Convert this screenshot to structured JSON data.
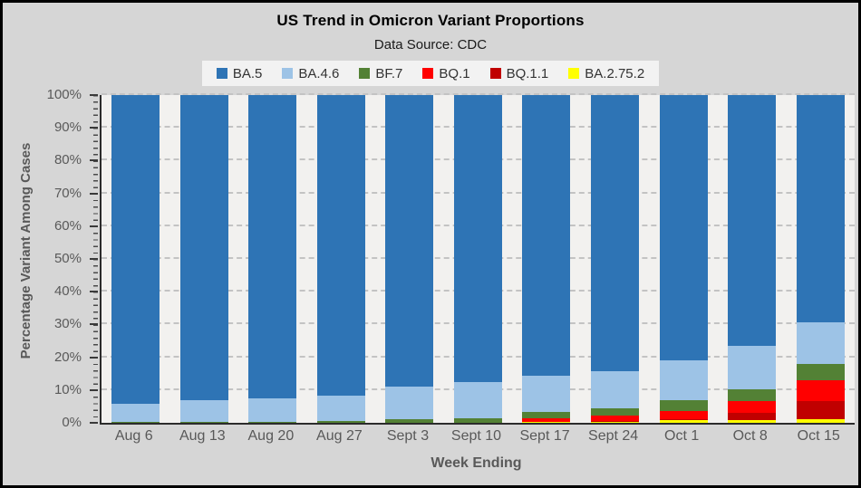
{
  "window": {
    "outer_background": "#d6d6d6",
    "border_color": "#000000"
  },
  "colors": {
    "plot_background": "#f2f1ef",
    "gridline": "#c3c3c3",
    "axis_line": "#2b2b2b",
    "axis_text": "#595959",
    "title_text": "#000000",
    "legend_background": "#f2f2f2"
  },
  "chart_data": {
    "type": "bar",
    "stacked": true,
    "title": "US Trend in Omicron Variant Proportions",
    "subtitle": "Data Source: CDC",
    "xlabel": "Week Ending",
    "ylabel": "Percentage Variant Among Cases",
    "ylim": [
      0,
      100
    ],
    "y_tick_step": 10,
    "y_minor_tick_step": 2,
    "y_tick_suffix": "%",
    "grid": "horizontal dashed",
    "legend_position": "top center",
    "categories": [
      "Aug 6",
      "Aug 13",
      "Aug 20",
      "Aug 27",
      "Sept 3",
      "Sept 10",
      "Sept 17",
      "Sept 24",
      "Oct 1",
      "Oct 8",
      "Oct 15"
    ],
    "series": [
      {
        "name": "BA.5",
        "color": "#2e74b5",
        "values": [
          94.2,
          93.0,
          92.5,
          91.7,
          89.0,
          87.6,
          85.5,
          84.2,
          81.0,
          76.6,
          69.4
        ]
      },
      {
        "name": "BA.4.6",
        "color": "#9dc3e6",
        "values": [
          5.5,
          6.7,
          7.2,
          7.7,
          10.0,
          11.0,
          11.2,
          11.5,
          12.0,
          13.1,
          12.5
        ]
      },
      {
        "name": "BF.7",
        "color": "#538135",
        "values": [
          0.3,
          0.3,
          0.3,
          0.6,
          1.0,
          1.4,
          1.9,
          2.2,
          3.5,
          3.7,
          5.2
        ]
      },
      {
        "name": "BQ.1",
        "color": "#ff0000",
        "values": [
          0,
          0,
          0,
          0,
          0,
          0,
          1.0,
          1.5,
          2.5,
          3.6,
          6.3
        ]
      },
      {
        "name": "BQ.1.1",
        "color": "#c00000",
        "values": [
          0,
          0,
          0,
          0,
          0,
          0,
          0.2,
          0.3,
          0.3,
          2.2,
          5.6
        ]
      },
      {
        "name": "BA.2.75.2",
        "color": "#ffff00",
        "values": [
          0,
          0,
          0,
          0,
          0,
          0,
          0.2,
          0.3,
          0.7,
          0.8,
          1.0
        ]
      }
    ],
    "stack_order_bottom_to_top": [
      "BA.2.75.2",
      "BQ.1.1",
      "BQ.1",
      "BF.7",
      "BA.4.6",
      "BA.5"
    ]
  }
}
